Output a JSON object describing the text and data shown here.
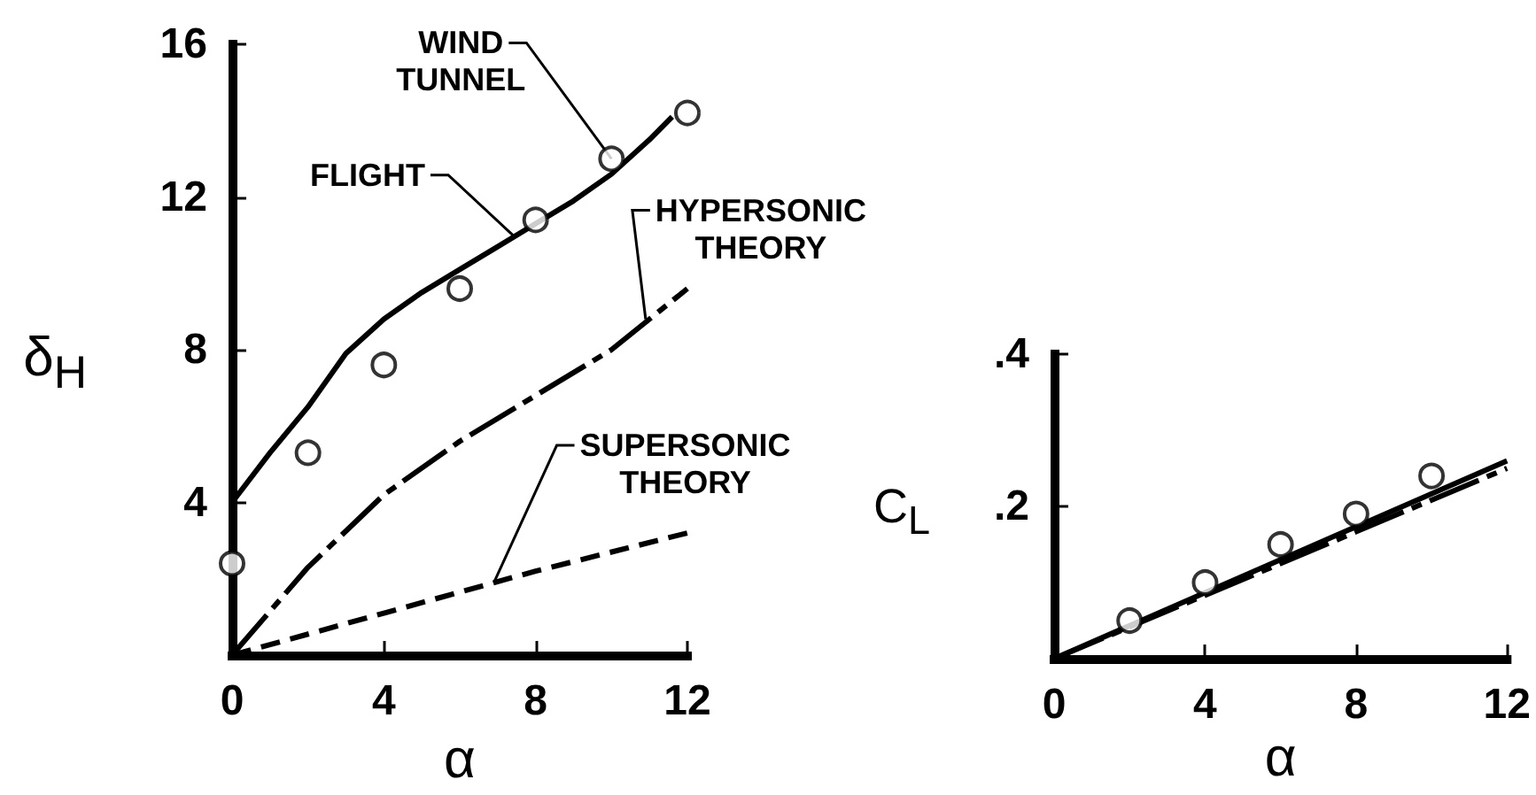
{
  "chart_data": [
    {
      "type": "line",
      "xlabel": "α",
      "ylabel": "δ$_{H}$",
      "xlim": [
        0,
        12
      ],
      "ylim": [
        0,
        16
      ],
      "xticks": [
        0,
        4,
        8,
        12
      ],
      "yticks": [
        4,
        8,
        12,
        16
      ],
      "series": [
        {
          "type": "line",
          "color": "#000000",
          "line_style": "solid",
          "x": [
            0,
            1,
            2,
            3,
            4,
            5,
            6,
            7,
            8,
            9,
            10,
            11,
            11.6
          ],
          "values": [
            4.0,
            5.3,
            6.5,
            7.9,
            8.8,
            9.5,
            10.1,
            10.7,
            11.3,
            11.9,
            12.6,
            13.5,
            14.1
          ]
        },
        {
          "type": "line",
          "color": "#000000",
          "line_style": "dashdot",
          "x": [
            0,
            2,
            4,
            6,
            8,
            10,
            11,
            12
          ],
          "values": [
            0,
            2.3,
            4.2,
            5.6,
            6.8,
            8.0,
            8.8,
            9.6
          ]
        },
        {
          "type": "line",
          "color": "#000000",
          "line_style": "dashed",
          "x": [
            0,
            4,
            8,
            12
          ],
          "values": [
            0,
            1.1,
            2.2,
            3.2
          ]
        },
        {
          "type": "scatter",
          "color": "#000000",
          "marker": "circle",
          "x": [
            0,
            2,
            4,
            6,
            8,
            10,
            12
          ],
          "values": [
            2.4,
            5.3,
            7.6,
            9.6,
            11.4,
            13.0,
            14.2
          ]
        }
      ],
      "annotations": [
        {
          "text": "WIND\nTUNNEL",
          "x": 10,
          "y": 13.0
        },
        {
          "text": "FLIGHT",
          "x": 7.4,
          "y": 11.0
        },
        {
          "text": "HYPERSONIC\nTHEORY",
          "x": 10.9,
          "y": 8.8
        },
        {
          "text": "SUPERSONIC\nTHEORY",
          "x": 6.9,
          "y": 1.9
        }
      ]
    },
    {
      "type": "line",
      "xlabel": "α",
      "ylabel": "C$_{L}$",
      "xlim": [
        0,
        12
      ],
      "ylim": [
        0,
        0.4
      ],
      "xticks": [
        0,
        4,
        8,
        12
      ],
      "yticks": [
        {
          "value": 0.2,
          "label": ".2"
        },
        {
          "value": 0.4,
          "label": ".4"
        }
      ],
      "series": [
        {
          "type": "line",
          "color": "#000000",
          "line_style": "solid",
          "x": [
            0,
            12
          ],
          "values": [
            0,
            0.26
          ]
        },
        {
          "type": "line",
          "color": "#000000",
          "line_style": "dashdot",
          "x": [
            0,
            12
          ],
          "values": [
            0,
            0.25
          ]
        },
        {
          "type": "scatter",
          "color": "#000000",
          "marker": "circle",
          "x": [
            2,
            4,
            6,
            8,
            10
          ],
          "values": [
            0.05,
            0.1,
            0.15,
            0.19,
            0.24
          ]
        }
      ]
    }
  ]
}
